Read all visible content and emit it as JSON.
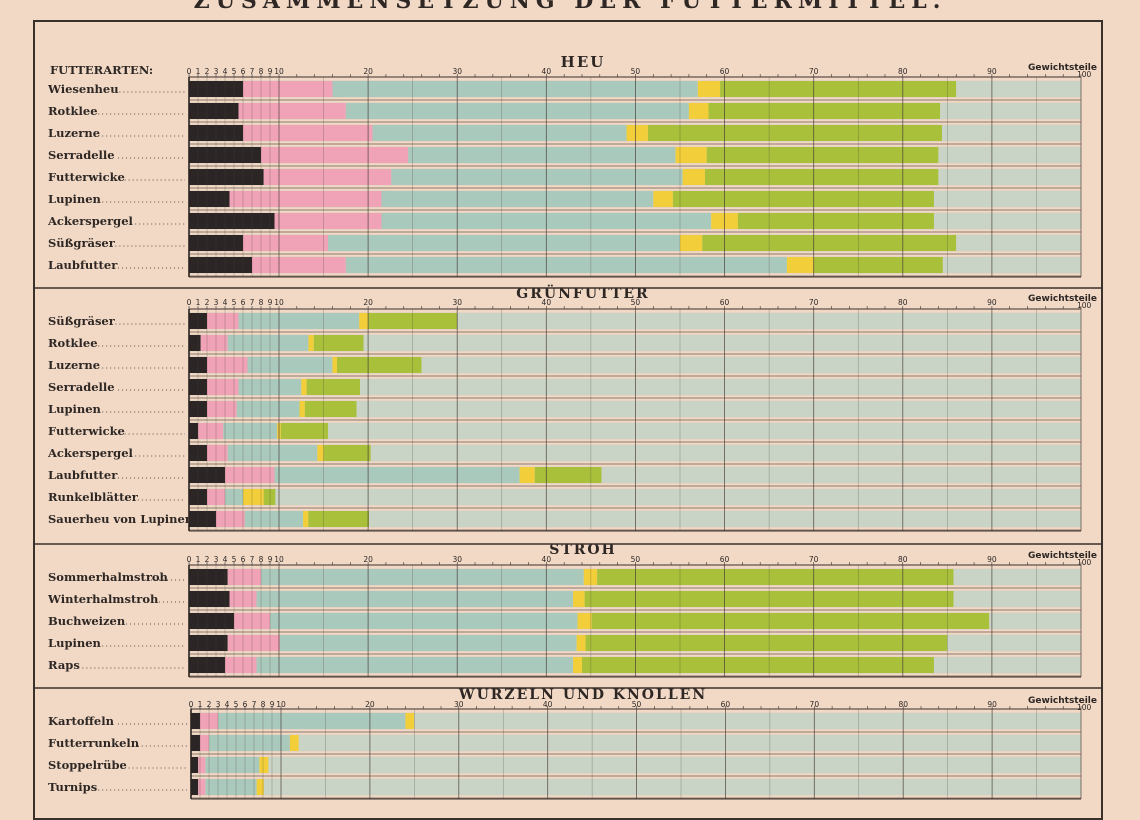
{
  "page": {
    "title": "ZUSAMMENSETZUNG DER FUTTERMITTEL."
  },
  "colors": {
    "background": "#f1d9c6",
    "track": "#e7d3c2",
    "segments": [
      "#2b2625",
      "#f0a3b6",
      "#a9c9bd",
      "#f2cf3a",
      "#a8c03a",
      "#c9d4c6"
    ]
  },
  "chart_data": {
    "type": "bar",
    "stacked": true,
    "orientation": "horizontal",
    "unit_label": "Gewichtsteile",
    "xlim": [
      0,
      100
    ],
    "ticks": [
      "0",
      "1",
      "2",
      "3",
      "4",
      "5",
      "6",
      "7",
      "8",
      "9",
      "10",
      "20",
      "30",
      "40",
      "50",
      "60",
      "70",
      "80",
      "90",
      "100"
    ],
    "row_header": "FUTTERARTEN:",
    "grid": true,
    "sections": [
      {
        "title": "HEU",
        "rows": [
          {
            "label": "Wiesenheu",
            "values": [
              6,
              10,
              41,
              2.5,
              26.5,
              14
            ]
          },
          {
            "label": "Rotklee",
            "values": [
              5.5,
              12,
              38.5,
              2.2,
              26,
              15.8
            ]
          },
          {
            "label": "Luzerne",
            "values": [
              6,
              14.5,
              28.5,
              2.4,
              33,
              15.6
            ]
          },
          {
            "label": "Serradelle",
            "values": [
              8,
              16.5,
              30,
              3.5,
              26,
              16
            ]
          },
          {
            "label": "Futterwicke",
            "values": [
              8.3,
              14.3,
              32.7,
              2.5,
              26.2,
              16
            ]
          },
          {
            "label": "Lupinen",
            "values": [
              4.5,
              17,
              30.5,
              2.2,
              29.3,
              16.5
            ]
          },
          {
            "label": "Ackerspergel",
            "values": [
              9.5,
              12,
              37,
              3,
              22,
              16.5
            ]
          },
          {
            "label": "Süßgräser",
            "values": [
              6,
              9.5,
              39.5,
              2.5,
              28.5,
              14
            ]
          },
          {
            "label": "Laubfutter",
            "values": [
              7,
              10.5,
              49.5,
              3,
              14.5,
              15.5
            ]
          }
        ]
      },
      {
        "title": "GRÜNFUTTER",
        "rows": [
          {
            "label": "Süßgräser",
            "values": [
              2,
              3.5,
              13.5,
              1,
              10,
              70
            ]
          },
          {
            "label": "Rotklee",
            "values": [
              1.3,
              3,
              9,
              0.6,
              5.6,
              80.5
            ]
          },
          {
            "label": "Luzerne",
            "values": [
              2,
              4.5,
              9.5,
              0.5,
              9.5,
              74
            ]
          },
          {
            "label": "Serradelle",
            "values": [
              2,
              3.5,
              7,
              0.6,
              6,
              80.9
            ]
          },
          {
            "label": "Lupinen",
            "values": [
              2,
              3.3,
              7,
              0.6,
              5.8,
              81.3
            ]
          },
          {
            "label": "Futterwicke",
            "values": [
              1,
              2.8,
              6,
              0.4,
              5.3,
              84.5
            ]
          },
          {
            "label": "Ackerspergel",
            "values": [
              2,
              2.3,
              10,
              0.7,
              5.3,
              79.7
            ]
          },
          {
            "label": "Laubfutter",
            "values": [
              4,
              5.5,
              27.5,
              1.7,
              7.5,
              53.8
            ]
          },
          {
            "label": "Runkelblätter",
            "values": [
              2,
              2,
              2,
              2.3,
              1.3,
              90.4
            ]
          },
          {
            "label": "Sauerheu von Lupinen",
            "values": [
              3,
              3.2,
              6.5,
              0.6,
              6.8,
              79.9
            ]
          }
        ]
      },
      {
        "title": "STROH",
        "rows": [
          {
            "label": "Sommerhalmstroh",
            "values": [
              4.3,
              3.7,
              36.2,
              1.5,
              40,
              14.3
            ]
          },
          {
            "label": "Winterhalmstroh",
            "values": [
              4.5,
              3,
              35.5,
              1.3,
              41.4,
              14.3
            ]
          },
          {
            "label": "Buchweizen",
            "values": [
              5,
              4,
              34.5,
              1.6,
              44.6,
              10.3
            ]
          },
          {
            "label": "Lupinen",
            "values": [
              4.3,
              5.8,
              33.3,
              1,
              40.6,
              15
            ]
          },
          {
            "label": "Raps",
            "values": [
              4,
              3.5,
              35.5,
              1,
              39.5,
              16.5
            ]
          }
        ]
      },
      {
        "title": "WURZELN UND KNOLLEN",
        "rows": [
          {
            "label": "Kartoffeln",
            "values": [
              1,
              2,
              21,
              1,
              0,
              75
            ]
          },
          {
            "label": "Futterrunkeln",
            "values": [
              1,
              1,
              9,
              1,
              0,
              88
            ]
          },
          {
            "label": "Stoppelrübe",
            "values": [
              0.8,
              0.8,
              6,
              1,
              0,
              91.4
            ]
          },
          {
            "label": "Turnips",
            "values": [
              0.8,
              0.8,
              5.7,
              0.8,
              0,
              91.9
            ]
          }
        ]
      }
    ]
  }
}
